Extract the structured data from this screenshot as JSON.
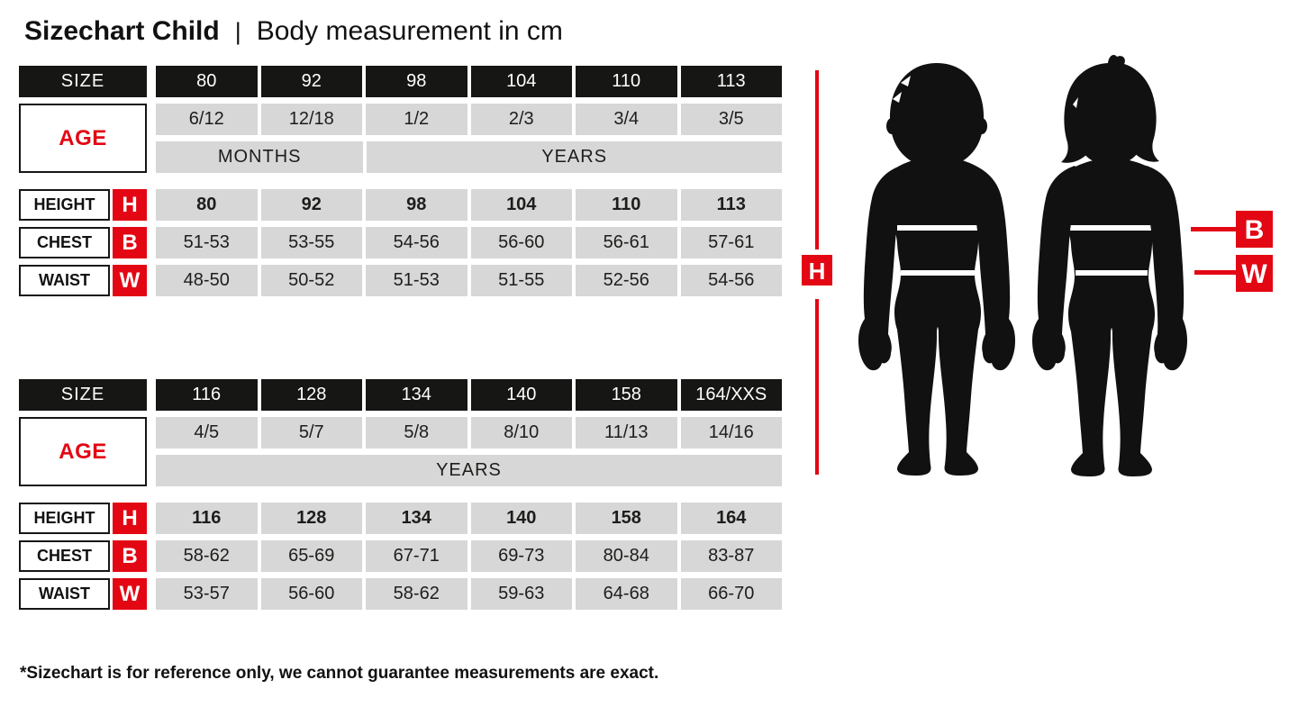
{
  "title": {
    "main": "Sizechart Child",
    "separator": "|",
    "subtitle": "Body measurement in cm"
  },
  "colors": {
    "accent_red": "#e30613",
    "table_black": "#161615",
    "cell_gray": "#d7d7d7"
  },
  "tables": [
    {
      "size_label": "SIZE",
      "age_label": "AGE",
      "sizes": [
        "80",
        "92",
        "98",
        "104",
        "110",
        "113"
      ],
      "ages": [
        "6/12",
        "12/18",
        "1/2",
        "2/3",
        "3/4",
        "3/5"
      ],
      "age_units": [
        {
          "label": "MONTHS",
          "span": 2
        },
        {
          "label": "YEARS",
          "span": 4
        }
      ],
      "rows": [
        {
          "label": "HEIGHT",
          "key": "H",
          "bold": true,
          "values": [
            "80",
            "92",
            "98",
            "104",
            "110",
            "113"
          ]
        },
        {
          "label": "CHEST",
          "key": "B",
          "bold": false,
          "values": [
            "51-53",
            "53-55",
            "54-56",
            "56-60",
            "56-61",
            "57-61"
          ]
        },
        {
          "label": "WAIST",
          "key": "W",
          "bold": false,
          "values": [
            "48-50",
            "50-52",
            "51-53",
            "51-55",
            "52-56",
            "54-56"
          ]
        }
      ]
    },
    {
      "size_label": "SIZE",
      "age_label": "AGE",
      "sizes": [
        "116",
        "128",
        "134",
        "140",
        "158",
        "164/XXS"
      ],
      "ages": [
        "4/5",
        "5/7",
        "5/8",
        "8/10",
        "11/13",
        "14/16"
      ],
      "age_units": [
        {
          "label": "YEARS",
          "span": 6
        }
      ],
      "rows": [
        {
          "label": "HEIGHT",
          "key": "H",
          "bold": true,
          "values": [
            "116",
            "128",
            "134",
            "140",
            "158",
            "164"
          ]
        },
        {
          "label": "CHEST",
          "key": "B",
          "bold": false,
          "values": [
            "58-62",
            "65-69",
            "67-71",
            "69-73",
            "80-84",
            "83-87"
          ]
        },
        {
          "label": "WAIST",
          "key": "W",
          "bold": false,
          "values": [
            "53-57",
            "56-60",
            "58-62",
            "59-63",
            "64-68",
            "66-70"
          ]
        }
      ]
    }
  ],
  "figure": {
    "height_key": "H",
    "chest_key": "B",
    "waist_key": "W"
  },
  "footnote": "*Sizechart is for reference only, we cannot guarantee measurements are exact."
}
